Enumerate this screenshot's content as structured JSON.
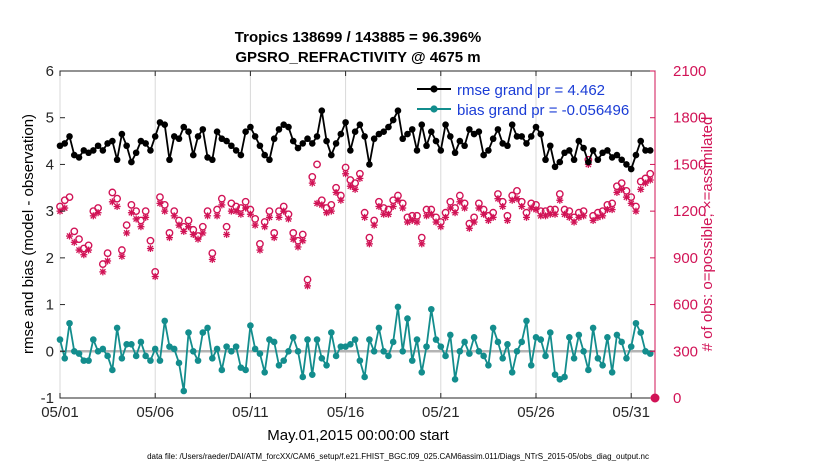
{
  "chart_data": {
    "type": "line",
    "title": "Tropics 138699 / 143885 = 96.396%",
    "subtitle": "GPSRO_REFRACTIVITY @ 4675 m",
    "xlabel": "May.01,2015 00:00:00 start",
    "ylabel_left": "rmse and bias (model - observation)",
    "ylabel_right": "# of obs: o=possible; ×=assimilated",
    "footer": "data file: /Users/raeder/DAI/ATM_forcXX/CAM6_setup/f.e21.FHIST_BGC.f09_025.CAM6assim.011/Diags_NTrS_2015-05/obs_diag_output.nc",
    "x_tick_labels": [
      "05/01",
      "05/06",
      "05/11",
      "05/16",
      "05/21",
      "05/26",
      "05/31"
    ],
    "x_ticks": [
      0,
      5,
      10,
      15,
      20,
      25,
      30
    ],
    "xlim": [
      0,
      31.25
    ],
    "ylim_left": [
      -1,
      6
    ],
    "y_ticks_left": [
      -1,
      0,
      1,
      2,
      3,
      4,
      5,
      6
    ],
    "y_tick_labels_left": [
      "-1",
      "0",
      "1",
      "2",
      "3",
      "4",
      "5",
      "6"
    ],
    "ylim_right": [
      0,
      2100
    ],
    "y_ticks_right": [
      0,
      300,
      600,
      900,
      1200,
      1500,
      1800,
      2100
    ],
    "y_tick_labels_right": [
      "0",
      "300",
      "600",
      "900",
      "1200",
      "1500",
      "1800",
      "2100"
    ],
    "colors": {
      "rmse": "#000000",
      "bias": "#138d8d",
      "obs": "#d11356",
      "zero_line": "#b4b4b4",
      "legend_text": "#1a3cd6"
    },
    "series": [
      {
        "name": "rmse grand pr = 4.462",
        "x": [
          0.0,
          0.25,
          0.5,
          0.75,
          1.0,
          1.25,
          1.5,
          1.75,
          2.0,
          2.25,
          2.5,
          2.75,
          3.0,
          3.25,
          3.5,
          3.75,
          4.0,
          4.25,
          4.5,
          4.75,
          5.0,
          5.25,
          5.5,
          5.75,
          6.0,
          6.25,
          6.5,
          6.75,
          7.0,
          7.25,
          7.5,
          7.75,
          8.0,
          8.25,
          8.5,
          8.75,
          9.0,
          9.25,
          9.5,
          9.75,
          10.0,
          10.25,
          10.5,
          10.75,
          11.0,
          11.25,
          11.5,
          11.75,
          12.0,
          12.25,
          12.5,
          12.75,
          13.0,
          13.25,
          13.5,
          13.75,
          14.0,
          14.25,
          14.5,
          14.75,
          15.0,
          15.25,
          15.5,
          15.75,
          16.0,
          16.25,
          16.5,
          16.75,
          17.0,
          17.25,
          17.5,
          17.75,
          18.0,
          18.25,
          18.5,
          18.75,
          19.0,
          19.25,
          19.5,
          19.75,
          20.0,
          20.25,
          20.5,
          20.75,
          21.0,
          21.25,
          21.5,
          21.75,
          22.0,
          22.25,
          22.5,
          22.75,
          23.0,
          23.25,
          23.5,
          23.75,
          24.0,
          24.25,
          24.5,
          24.75,
          25.0,
          25.25,
          25.5,
          25.75,
          26.0,
          26.25,
          26.5,
          26.75,
          27.0,
          27.25,
          27.5,
          27.75,
          28.0,
          28.25,
          28.5,
          28.75,
          29.0,
          29.25,
          29.5,
          29.75,
          30.0,
          30.25,
          30.5,
          30.75,
          31.0
        ],
        "values": [
          4.4,
          4.45,
          4.6,
          4.2,
          4.15,
          4.3,
          4.25,
          4.3,
          4.4,
          4.3,
          4.45,
          4.5,
          4.1,
          4.65,
          4.4,
          4.05,
          4.25,
          4.5,
          4.45,
          4.3,
          4.6,
          4.9,
          4.85,
          4.1,
          4.6,
          4.55,
          4.8,
          4.7,
          4.2,
          4.6,
          4.75,
          4.15,
          4.1,
          4.7,
          4.55,
          4.5,
          4.4,
          4.3,
          4.2,
          4.7,
          4.8,
          4.6,
          4.4,
          4.2,
          4.1,
          4.55,
          4.75,
          4.85,
          4.8,
          4.5,
          4.35,
          4.45,
          4.55,
          4.45,
          4.6,
          5.15,
          4.5,
          4.2,
          4.45,
          4.65,
          4.9,
          4.3,
          4.7,
          4.85,
          4.6,
          4.0,
          4.55,
          4.65,
          4.7,
          4.8,
          4.95,
          5.15,
          4.55,
          4.65,
          4.75,
          4.3,
          4.85,
          4.4,
          4.7,
          4.5,
          4.3,
          4.85,
          4.6,
          4.25,
          4.5,
          4.4,
          4.75,
          4.65,
          4.7,
          4.2,
          4.3,
          4.55,
          4.75,
          4.45,
          4.4,
          4.85,
          4.6,
          4.6,
          4.45,
          4.6,
          4.8,
          4.65,
          4.1,
          4.4,
          3.95,
          4.05,
          4.25,
          4.3,
          4.1,
          4.5,
          4.35,
          4.05,
          4.3,
          4.1,
          4.25,
          4.3,
          4.15,
          4.2,
          4.1,
          4.0,
          3.9,
          4.2,
          4.5,
          4.3,
          4.3
        ]
      },
      {
        "name": "bias grand pr = -0.056496",
        "x": [
          0.0,
          0.25,
          0.5,
          0.75,
          1.0,
          1.25,
          1.5,
          1.75,
          2.0,
          2.25,
          2.5,
          2.75,
          3.0,
          3.25,
          3.5,
          3.75,
          4.0,
          4.25,
          4.5,
          4.75,
          5.0,
          5.25,
          5.5,
          5.75,
          6.0,
          6.25,
          6.5,
          6.75,
          7.0,
          7.25,
          7.5,
          7.75,
          8.0,
          8.25,
          8.5,
          8.75,
          9.0,
          9.25,
          9.5,
          9.75,
          10.0,
          10.25,
          10.5,
          10.75,
          11.0,
          11.25,
          11.5,
          11.75,
          12.0,
          12.25,
          12.5,
          12.75,
          13.0,
          13.25,
          13.5,
          13.75,
          14.0,
          14.25,
          14.5,
          14.75,
          15.0,
          15.25,
          15.5,
          15.75,
          16.0,
          16.25,
          16.5,
          16.75,
          17.0,
          17.25,
          17.5,
          17.75,
          18.0,
          18.25,
          18.5,
          18.75,
          19.0,
          19.25,
          19.5,
          19.75,
          20.0,
          20.25,
          20.5,
          20.75,
          21.0,
          21.25,
          21.5,
          21.75,
          22.0,
          22.25,
          22.5,
          22.75,
          23.0,
          23.25,
          23.5,
          23.75,
          24.0,
          24.25,
          24.5,
          24.75,
          25.0,
          25.25,
          25.5,
          25.75,
          26.0,
          26.25,
          26.5,
          26.75,
          27.0,
          27.25,
          27.5,
          27.75,
          28.0,
          28.25,
          28.5,
          28.75,
          29.0,
          29.25,
          29.5,
          29.75,
          30.0,
          30.25,
          30.5,
          30.75,
          31.0
        ],
        "values": [
          0.25,
          -0.15,
          0.6,
          0.0,
          -0.05,
          -0.2,
          -0.2,
          0.25,
          0.0,
          0.05,
          -0.1,
          -0.4,
          0.5,
          -0.15,
          0.15,
          0.15,
          -0.1,
          0.2,
          -0.1,
          -0.2,
          0.05,
          -0.2,
          0.65,
          0.1,
          0.05,
          -0.25,
          -0.85,
          0.4,
          0.0,
          -0.2,
          0.4,
          0.5,
          -0.15,
          0.05,
          -0.4,
          0.1,
          0.0,
          0.1,
          -0.35,
          -0.4,
          0.55,
          0.05,
          -0.05,
          -0.45,
          0.25,
          0.2,
          -0.3,
          -0.2,
          0.0,
          0.3,
          0.0,
          -0.55,
          0.25,
          -0.5,
          0.25,
          -0.15,
          -0.3,
          0.4,
          -0.1,
          0.1,
          0.1,
          0.15,
          0.25,
          -0.2,
          -0.55,
          0.25,
          0.0,
          0.5,
          0.0,
          -0.1,
          0.2,
          0.95,
          0.0,
          0.7,
          -0.2,
          0.25,
          -0.45,
          0.1,
          0.9,
          0.25,
          0.1,
          -0.1,
          0.35,
          -0.6,
          0.0,
          0.2,
          -0.05,
          0.3,
          0.0,
          -0.1,
          -0.3,
          0.5,
          0.2,
          -0.15,
          0.15,
          -0.45,
          0.0,
          0.2,
          0.65,
          -0.3,
          0.3,
          0.25,
          -0.1,
          0.4,
          -0.5,
          -0.6,
          -0.55,
          0.3,
          -0.15,
          0.35,
          0.0,
          -0.4,
          0.5,
          -0.15,
          -0.3,
          0.3,
          -0.45,
          0.35,
          0.2,
          -0.15,
          0.1,
          0.6,
          0.4,
          0.0,
          -0.05
        ]
      },
      {
        "name": "possible",
        "axis": "right",
        "marker": "o",
        "x": [
          0.0,
          0.25,
          0.5,
          0.75,
          1.0,
          1.25,
          1.5,
          1.75,
          2.0,
          2.25,
          2.5,
          2.75,
          3.0,
          3.25,
          3.5,
          3.75,
          4.0,
          4.25,
          4.5,
          4.75,
          5.0,
          5.25,
          5.5,
          5.75,
          6.0,
          6.25,
          6.5,
          6.75,
          7.0,
          7.25,
          7.5,
          7.75,
          8.0,
          8.25,
          8.5,
          8.75,
          9.0,
          9.25,
          9.5,
          9.75,
          10.0,
          10.25,
          10.5,
          10.75,
          11.0,
          11.25,
          11.5,
          11.75,
          12.0,
          12.25,
          12.5,
          12.75,
          13.0,
          13.25,
          13.5,
          13.75,
          14.0,
          14.25,
          14.5,
          14.75,
          15.0,
          15.25,
          15.5,
          15.75,
          16.0,
          16.25,
          16.5,
          16.75,
          17.0,
          17.25,
          17.5,
          17.75,
          18.0,
          18.25,
          18.5,
          18.75,
          19.0,
          19.25,
          19.5,
          19.75,
          20.0,
          20.25,
          20.5,
          20.75,
          21.0,
          21.25,
          21.5,
          21.75,
          22.0,
          22.25,
          22.5,
          22.75,
          23.0,
          23.25,
          23.5,
          23.75,
          24.0,
          24.25,
          24.5,
          24.75,
          25.0,
          25.25,
          25.5,
          25.75,
          26.0,
          26.25,
          26.5,
          26.75,
          27.0,
          27.25,
          27.5,
          27.75,
          28.0,
          28.25,
          28.5,
          28.75,
          29.0,
          29.25,
          29.5,
          29.75,
          30.0,
          30.25,
          30.5,
          30.75,
          31.0
        ],
        "values": [
          1230,
          1270,
          1290,
          1070,
          1020,
          960,
          980,
          1200,
          1220,
          860,
          930,
          1320,
          1280,
          950,
          1110,
          1240,
          1200,
          1140,
          1200,
          1010,
          810,
          1290,
          1240,
          1060,
          1200,
          1140,
          1100,
          1140,
          1080,
          1040,
          1100,
          1200,
          930,
          1210,
          1280,
          1100,
          1250,
          1230,
          1220,
          1260,
          1210,
          1150,
          990,
          1130,
          1200,
          1060,
          1200,
          1230,
          1180,
          1060,
          1010,
          1050,
          760,
          1420,
          1500,
          1270,
          1220,
          1240,
          1350,
          1300,
          1480,
          1400,
          1380,
          1440,
          1190,
          1030,
          1140,
          1260,
          1220,
          1210,
          1270,
          1300,
          1250,
          1160,
          1170,
          1170,
          1030,
          1210,
          1210,
          1160,
          1130,
          1190,
          1260,
          1220,
          1300,
          1250,
          1120,
          1160,
          1250,
          1210,
          1170,
          1190,
          1310,
          1260,
          1170,
          1300,
          1330,
          1260,
          1190,
          1250,
          1240,
          1200,
          1200,
          1210,
          1210,
          1310,
          1210,
          1200,
          1160,
          1190,
          1200,
          1530,
          1170,
          1190,
          1200,
          1240,
          1250,
          1360,
          1380,
          1330,
          1290,
          1230,
          1390,
          1410,
          1440
        ]
      },
      {
        "name": "assimilated",
        "axis": "right",
        "marker": "*",
        "x": [
          0.0,
          0.25,
          0.5,
          0.75,
          1.0,
          1.25,
          1.5,
          1.75,
          2.0,
          2.25,
          2.5,
          2.75,
          3.0,
          3.25,
          3.5,
          3.75,
          4.0,
          4.25,
          4.5,
          4.75,
          5.0,
          5.25,
          5.5,
          5.75,
          6.0,
          6.25,
          6.5,
          6.75,
          7.0,
          7.25,
          7.5,
          7.75,
          8.0,
          8.25,
          8.5,
          8.75,
          9.0,
          9.25,
          9.5,
          9.75,
          10.0,
          10.25,
          10.5,
          10.75,
          11.0,
          11.25,
          11.5,
          11.75,
          12.0,
          12.25,
          12.5,
          12.75,
          13.0,
          13.25,
          13.5,
          13.75,
          14.0,
          14.25,
          14.5,
          14.75,
          15.0,
          15.25,
          15.5,
          15.75,
          16.0,
          16.25,
          16.5,
          16.75,
          17.0,
          17.25,
          17.5,
          17.75,
          18.0,
          18.25,
          18.5,
          18.75,
          19.0,
          19.25,
          19.5,
          19.75,
          20.0,
          20.25,
          20.5,
          20.75,
          21.0,
          21.25,
          21.5,
          21.75,
          22.0,
          22.25,
          22.5,
          22.75,
          23.0,
          23.25,
          23.5,
          23.75,
          24.0,
          24.25,
          24.5,
          24.75,
          25.0,
          25.25,
          25.5,
          25.75,
          26.0,
          26.25,
          26.5,
          26.75,
          27.0,
          27.25,
          27.5,
          27.75,
          28.0,
          28.25,
          28.5,
          28.75,
          29.0,
          29.25,
          29.5,
          29.75,
          30.0,
          30.25,
          30.5,
          30.75,
          31.0
        ],
        "values": [
          1200,
          1220,
          1040,
          1000,
          950,
          920,
          950,
          1170,
          1190,
          810,
          880,
          1260,
          1230,
          910,
          1060,
          1190,
          1150,
          1100,
          1160,
          960,
          780,
          1250,
          1200,
          1030,
          1170,
          1110,
          1070,
          1100,
          1050,
          1020,
          1060,
          1170,
          890,
          1170,
          1240,
          1050,
          1200,
          1200,
          1180,
          1220,
          1180,
          1110,
          950,
          1100,
          1160,
          1030,
          1160,
          1200,
          1150,
          1020,
          970,
          1010,
          720,
          1380,
          1250,
          1240,
          1190,
          1200,
          1320,
          1270,
          1440,
          1360,
          1340,
          1410,
          1160,
          990,
          1110,
          1230,
          1180,
          1180,
          1230,
          1270,
          1220,
          1130,
          1140,
          1130,
          990,
          1170,
          1180,
          1130,
          1100,
          1160,
          1220,
          1190,
          1260,
          1220,
          1090,
          1130,
          1220,
          1180,
          1140,
          1160,
          1280,
          1230,
          1140,
          1270,
          1280,
          1230,
          1160,
          1220,
          1210,
          1170,
          1170,
          1180,
          1180,
          1270,
          1180,
          1160,
          1130,
          1160,
          1170,
          1500,
          1140,
          1160,
          1170,
          1210,
          1210,
          1320,
          1340,
          1290,
          1250,
          1200,
          1340,
          1380,
          1400
        ]
      }
    ]
  }
}
